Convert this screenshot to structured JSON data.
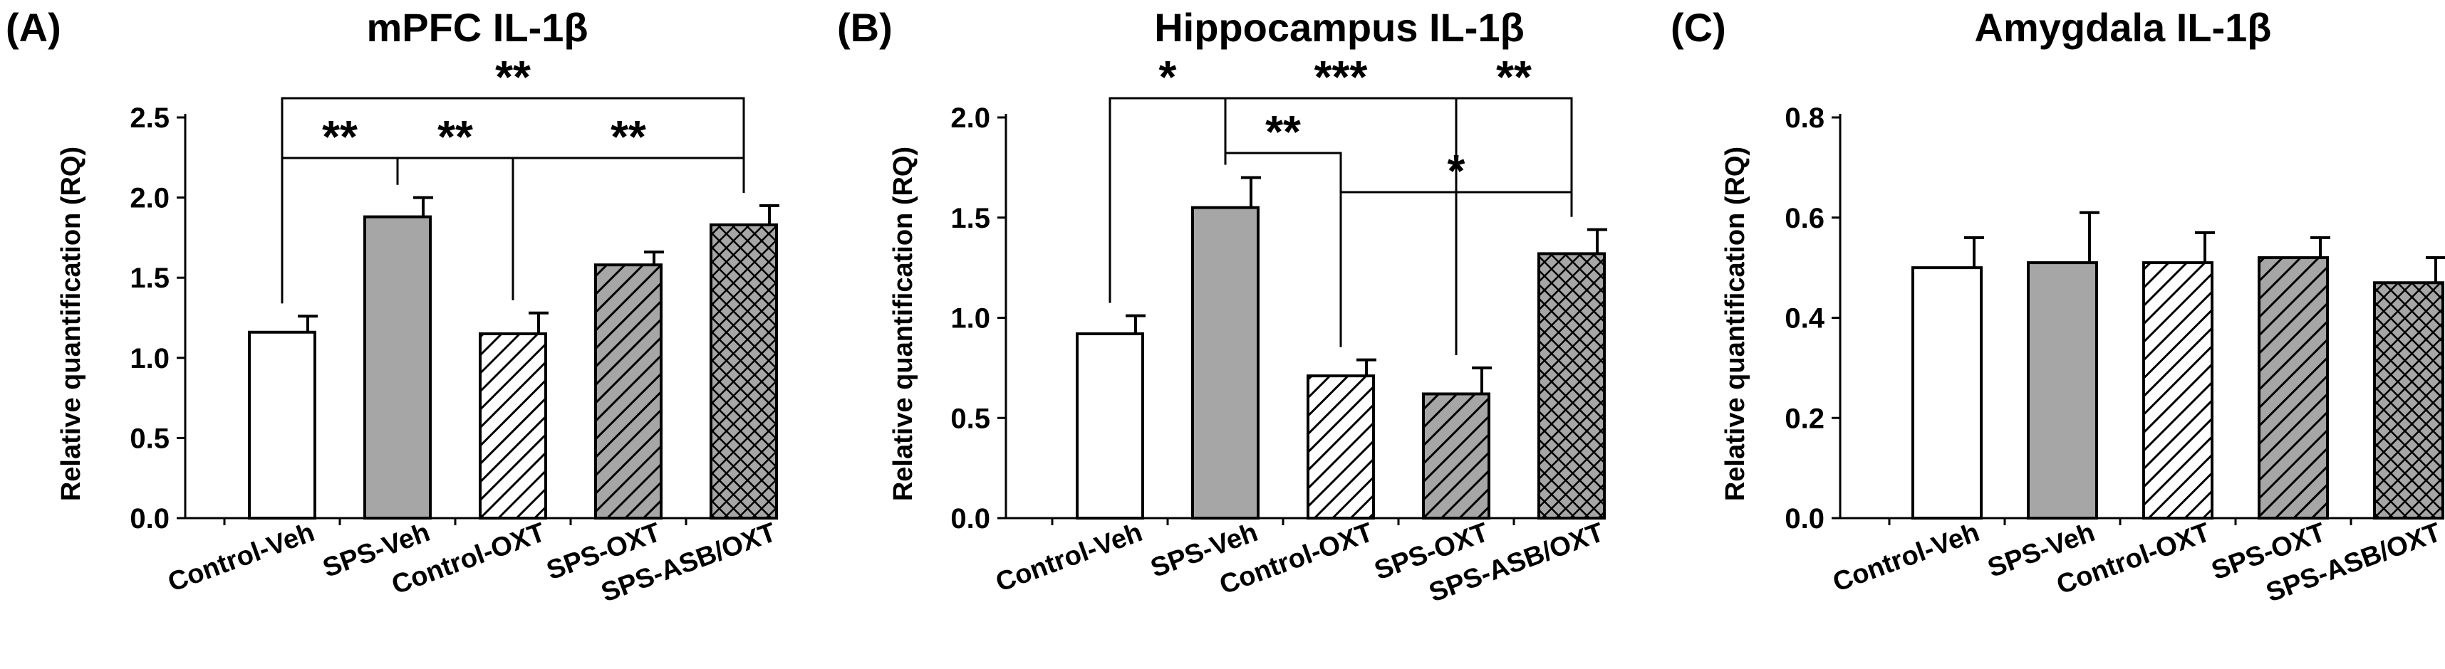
{
  "figure": {
    "panels": [
      "(A)",
      "(B)",
      "(C)"
    ]
  },
  "chart_data": [
    {
      "type": "bar",
      "panel_label": "(A)",
      "title": "mPFC IL-1β",
      "ylabel": "Relative quantification (RQ)",
      "xlabel": "",
      "ylim": [
        0,
        2.5
      ],
      "yticks": [
        "0.0",
        "0.5",
        "1.0",
        "1.5",
        "2.0",
        "2.5"
      ],
      "categories": [
        "Control-Veh",
        "SPS-Veh",
        "Control-OXT",
        "SPS-OXT",
        "SPS-ASB/OXT"
      ],
      "values": [
        1.16,
        1.88,
        1.15,
        1.58,
        1.83
      ],
      "errors": [
        0.1,
        0.12,
        0.13,
        0.08,
        0.12
      ],
      "fills": [
        "white",
        "gray",
        "diag-white",
        "diag-gray",
        "crosshatch"
      ],
      "significance": [
        {
          "from": 0,
          "to": 1,
          "label": "**"
        },
        {
          "from": 1,
          "to": 2,
          "label": "**"
        },
        {
          "from": 2,
          "to": 4,
          "label": "**"
        },
        {
          "from": 0,
          "to": 4,
          "label": "**"
        }
      ]
    },
    {
      "type": "bar",
      "panel_label": "(B)",
      "title": "Hippocampus IL-1β",
      "ylabel": "Relative quantification (RQ)",
      "xlabel": "",
      "ylim": [
        0,
        2.0
      ],
      "yticks": [
        "0.0",
        "0.5",
        "1.0",
        "1.5",
        "2.0"
      ],
      "categories": [
        "Control-Veh",
        "SPS-Veh",
        "Control-OXT",
        "SPS-OXT",
        "SPS-ASB/OXT"
      ],
      "values": [
        0.92,
        1.55,
        0.71,
        0.62,
        1.32
      ],
      "errors": [
        0.09,
        0.15,
        0.08,
        0.13,
        0.12
      ],
      "fills": [
        "white",
        "gray",
        "diag-white",
        "diag-gray",
        "crosshatch"
      ],
      "significance": [
        {
          "from": 0,
          "to": 1,
          "label": "*"
        },
        {
          "from": 1,
          "to": 2,
          "label": "**"
        },
        {
          "from": 1,
          "to": 3,
          "label": "***"
        },
        {
          "from": 3,
          "to": 4,
          "label": "**"
        },
        {
          "from": 2,
          "to": 4,
          "label": "*"
        }
      ]
    },
    {
      "type": "bar",
      "panel_label": "(C)",
      "title": "Amygdala IL-1β",
      "ylabel": "Relative quantification (RQ)",
      "xlabel": "",
      "ylim": [
        0,
        0.8
      ],
      "yticks": [
        "0.0",
        "0.2",
        "0.4",
        "0.6",
        "0.8"
      ],
      "categories": [
        "Control-Veh",
        "SPS-Veh",
        "Control-OXT",
        "SPS-OXT",
        "SPS-ASB/OXT"
      ],
      "values": [
        0.5,
        0.51,
        0.51,
        0.52,
        0.47
      ],
      "errors": [
        0.06,
        0.1,
        0.06,
        0.04,
        0.05
      ],
      "fills": [
        "white",
        "gray",
        "diag-white",
        "diag-gray",
        "crosshatch"
      ],
      "significance": []
    }
  ]
}
